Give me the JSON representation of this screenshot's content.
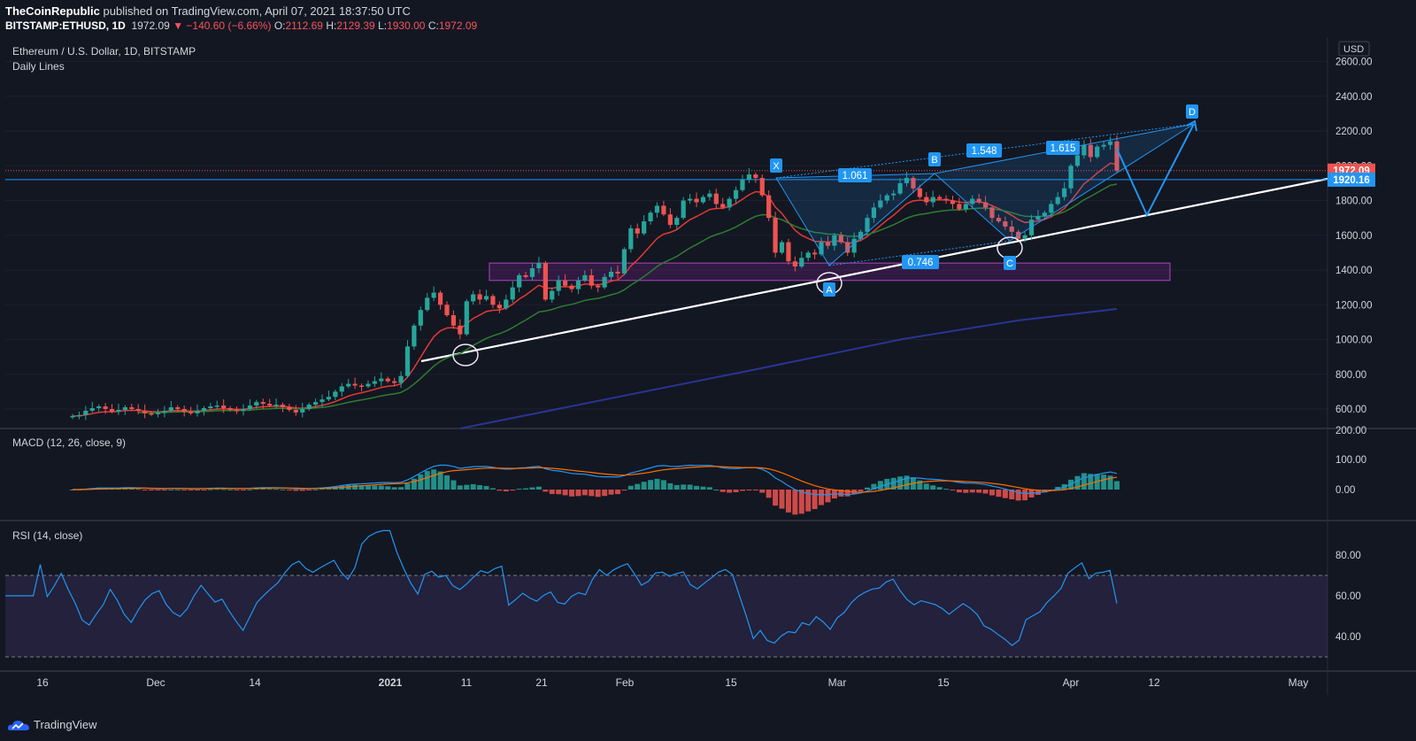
{
  "header": {
    "publisher": "TheCoinRepublic",
    "published_text": "published on TradingView.com, April 07, 2021 18:37:50 UTC",
    "symbol": "BITSTAMP:ETHUSD, 1D",
    "last": "1972.09",
    "change": "▼ −140.60 (−6.66%)",
    "o_label": "O:",
    "o": "2112.69",
    "h_label": "H:",
    "h": "2129.39",
    "l_label": "L:",
    "l": "1930.00",
    "c_label": "C:",
    "c": "1972.09"
  },
  "footer": {
    "brand": "TradingView"
  },
  "colors": {
    "bg": "#131722",
    "up": "#26a69a",
    "down": "#ef5350",
    "accent": "#2196f3"
  },
  "chart_data": [
    {
      "type": "candlestick",
      "title": "Ethereum / U.S. Dollar, 1D, BITSTAMP",
      "subtitle": "Daily Lines",
      "currency": "USD",
      "yticks": [
        "2600.00",
        "2400.00",
        "2200.00",
        "2000.00",
        "1800.00",
        "1600.00",
        "1400.00",
        "1200.00",
        "1000.00",
        "800.00",
        "600.00"
      ],
      "ylim": [
        500,
        2650
      ],
      "xticks": [
        "16",
        "Dec",
        "14",
        "2021",
        "11",
        "21",
        "Feb",
        "15",
        "Mar",
        "15",
        "Apr",
        "12",
        "May"
      ],
      "price_labels": [
        {
          "value": 1972.09,
          "text": "1972.09"
        },
        {
          "value": 1920.16,
          "text": "1920.16"
        }
      ],
      "harmonic_points": [
        "X",
        "A",
        "B",
        "C",
        "D"
      ],
      "fib_labels": [
        "1.061",
        "1.548",
        "1.615",
        "0.746"
      ],
      "support_zone": [
        1340,
        1440
      ],
      "close_series": [
        560,
        565,
        590,
        605,
        615,
        600,
        585,
        595,
        610,
        600,
        590,
        575,
        570,
        580,
        590,
        610,
        600,
        585,
        575,
        590,
        605,
        615,
        620,
        605,
        595,
        590,
        600,
        620,
        640,
        630,
        620,
        625,
        610,
        595,
        580,
        600,
        625,
        640,
        655,
        670,
        700,
        730,
        745,
        735,
        730,
        745,
        760,
        775,
        760,
        750,
        790,
        960,
        1080,
        1170,
        1240,
        1270,
        1200,
        1140,
        1080,
        1030,
        1220,
        1260,
        1230,
        1250,
        1200,
        1180,
        1230,
        1300,
        1370,
        1360,
        1410,
        1440,
        1230,
        1280,
        1340,
        1310,
        1290,
        1340,
        1370,
        1310,
        1300,
        1360,
        1390,
        1380,
        1520,
        1640,
        1610,
        1680,
        1730,
        1770,
        1720,
        1660,
        1700,
        1800,
        1810,
        1790,
        1820,
        1840,
        1780,
        1760,
        1810,
        1860,
        1920,
        1950,
        1930,
        1830,
        1700,
        1500,
        1560,
        1450,
        1420,
        1470,
        1500,
        1490,
        1560,
        1540,
        1600,
        1560,
        1500,
        1580,
        1620,
        1700,
        1760,
        1800,
        1830,
        1840,
        1900,
        1930,
        1870,
        1820,
        1790,
        1820,
        1810,
        1800,
        1780,
        1750,
        1780,
        1810,
        1790,
        1760,
        1700,
        1680,
        1650,
        1620,
        1580,
        1600,
        1690,
        1710,
        1730,
        1780,
        1820,
        1870,
        2000,
        2060,
        2120,
        2050,
        2110,
        2120,
        2140,
        1972
      ]
    },
    {
      "type": "line",
      "title": "MACD (12, 26, close, 9)",
      "yticks": [
        "200.00",
        "100.00",
        "0.00"
      ],
      "ylim": [
        -80,
        200
      ]
    },
    {
      "type": "line",
      "title": "RSI (14, close)",
      "yticks": [
        "80.00",
        "60.00",
        "40.00"
      ],
      "ylim": [
        28,
        95
      ],
      "bands": [
        70,
        30
      ]
    }
  ]
}
